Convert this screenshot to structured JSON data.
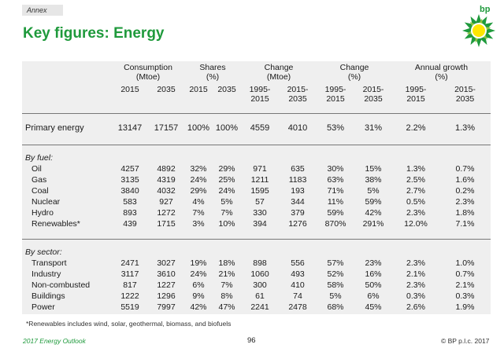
{
  "header": {
    "annex_label": "Annex",
    "title": "Key figures: Energy",
    "brand_colors": {
      "green": "#1f9a3c",
      "yellow": "#ffe600"
    },
    "logo_icon": "bp-helios-logo"
  },
  "table": {
    "groups": [
      {
        "label": "Consumption\n(Mtoe)"
      },
      {
        "label": "Shares\n(%)"
      },
      {
        "label": "Change\n(Mtoe)"
      },
      {
        "label": "Change\n(%)"
      },
      {
        "label": "Annual growth\n(%)"
      }
    ],
    "years": [
      "2015",
      "2035",
      "2015",
      "2035",
      "1995-\n2015",
      "2015-\n2035",
      "1995-\n2015",
      "2015-\n2035",
      "1995-\n2015",
      "2015-\n2035"
    ],
    "primary": {
      "label": "Primary energy",
      "values": [
        "13147",
        "17157",
        "100%",
        "100%",
        "4559",
        "4010",
        "53%",
        "31%",
        "2.2%",
        "1.3%"
      ]
    },
    "by_fuel_label": "By fuel:",
    "by_fuel": [
      {
        "label": "Oil",
        "values": [
          "4257",
          "4892",
          "32%",
          "29%",
          "971",
          "635",
          "30%",
          "15%",
          "1.3%",
          "0.7%"
        ]
      },
      {
        "label": "Gas",
        "values": [
          "3135",
          "4319",
          "24%",
          "25%",
          "1211",
          "1183",
          "63%",
          "38%",
          "2.5%",
          "1.6%"
        ]
      },
      {
        "label": "Coal",
        "values": [
          "3840",
          "4032",
          "29%",
          "24%",
          "1595",
          "193",
          "71%",
          "5%",
          "2.7%",
          "0.2%"
        ]
      },
      {
        "label": "Nuclear",
        "values": [
          "583",
          "927",
          "4%",
          "5%",
          "57",
          "344",
          "11%",
          "59%",
          "0.5%",
          "2.3%"
        ]
      },
      {
        "label": "Hydro",
        "values": [
          "893",
          "1272",
          "7%",
          "7%",
          "330",
          "379",
          "59%",
          "42%",
          "2.3%",
          "1.8%"
        ]
      },
      {
        "label": "Renewables*",
        "values": [
          "439",
          "1715",
          "3%",
          "10%",
          "394",
          "1276",
          "870%",
          "291%",
          "12.0%",
          "7.1%"
        ]
      }
    ],
    "by_sector_label": "By sector:",
    "by_sector": [
      {
        "label": "Transport",
        "values": [
          "2471",
          "3027",
          "19%",
          "18%",
          "898",
          "556",
          "57%",
          "23%",
          "2.3%",
          "1.0%"
        ]
      },
      {
        "label": "Industry",
        "values": [
          "3117",
          "3610",
          "24%",
          "21%",
          "1060",
          "493",
          "52%",
          "16%",
          "2.1%",
          "0.7%"
        ]
      },
      {
        "label": "Non-combusted",
        "values": [
          "817",
          "1227",
          "6%",
          "7%",
          "300",
          "410",
          "58%",
          "50%",
          "2.3%",
          "2.1%"
        ]
      },
      {
        "label": "Buildings",
        "values": [
          "1222",
          "1296",
          "9%",
          "8%",
          "61",
          "74",
          "5%",
          "6%",
          "0.3%",
          "0.3%"
        ]
      },
      {
        "label": "Power",
        "values": [
          "5519",
          "7997",
          "42%",
          "47%",
          "2241",
          "2478",
          "68%",
          "45%",
          "2.6%",
          "1.9%"
        ]
      }
    ]
  },
  "footnote": "*Renewables includes wind, solar, geothermal, biomass, and biofuels",
  "footer": {
    "left": "2017 Energy Outlook",
    "page": "96",
    "right": "© BP p.l.c. 2017"
  }
}
